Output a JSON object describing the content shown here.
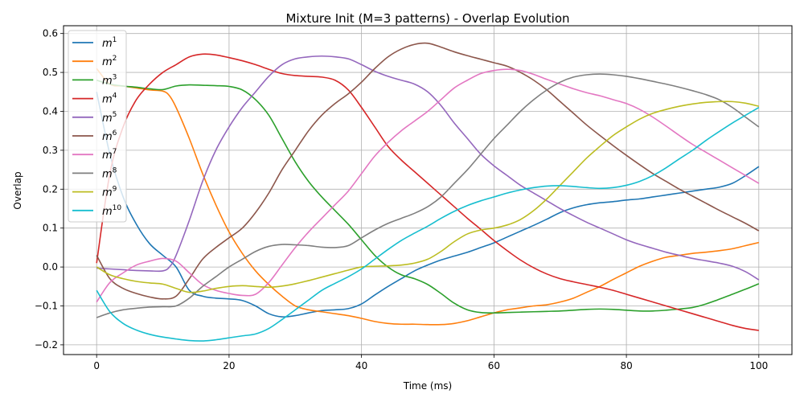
{
  "chart_data": {
    "type": "line",
    "title": "Mixture Init (M=3 patterns) - Overlap Evolution",
    "xlabel": "Time (ms)",
    "ylabel": "Overlap",
    "xlim": [
      -5,
      105
    ],
    "ylim": [
      -0.225,
      0.62
    ],
    "xticks": [
      0,
      20,
      40,
      60,
      80,
      100
    ],
    "yticks": [
      -0.2,
      -0.1,
      0.0,
      0.1,
      0.2,
      0.3,
      0.4,
      0.5,
      0.6
    ],
    "xtick_labels": [
      "0",
      "20",
      "40",
      "60",
      "80",
      "100"
    ],
    "ytick_labels": [
      "−0.2",
      "−0.1",
      "0.0",
      "0.1",
      "0.2",
      "0.3",
      "0.4",
      "0.5",
      "0.6"
    ],
    "grid": true,
    "legend_position": "upper-left",
    "series": [
      {
        "name": "m",
        "sup": "1",
        "color": "#1f77b4",
        "x": [
          0,
          2,
          4,
          6,
          8,
          10,
          12,
          14,
          16,
          18,
          20,
          22,
          24,
          26,
          28,
          30,
          32,
          34,
          36,
          38,
          40,
          42,
          44,
          46,
          48,
          50,
          52,
          54,
          56,
          58,
          60,
          62,
          64,
          66,
          68,
          70,
          72,
          74,
          76,
          78,
          80,
          82,
          84,
          86,
          88,
          90,
          92,
          94,
          96,
          98,
          100
        ],
        "y": [
          0.45,
          0.29,
          0.18,
          0.11,
          0.06,
          0.03,
          0.0,
          -0.06,
          -0.075,
          -0.08,
          -0.082,
          -0.086,
          -0.1,
          -0.12,
          -0.128,
          -0.125,
          -0.118,
          -0.112,
          -0.11,
          -0.107,
          -0.095,
          -0.072,
          -0.05,
          -0.03,
          -0.01,
          0.005,
          0.018,
          0.028,
          0.038,
          0.05,
          0.062,
          0.077,
          0.092,
          0.107,
          0.123,
          0.14,
          0.152,
          0.16,
          0.165,
          0.168,
          0.172,
          0.175,
          0.18,
          0.185,
          0.19,
          0.195,
          0.2,
          0.205,
          0.215,
          0.235,
          0.258
        ]
      },
      {
        "name": "m",
        "sup": "2",
        "color": "#ff7f0e",
        "x": [
          0,
          2,
          4,
          6,
          8,
          10,
          11,
          12,
          14,
          16,
          18,
          20,
          22,
          24,
          26,
          28,
          30,
          32,
          34,
          36,
          38,
          40,
          42,
          44,
          46,
          48,
          50,
          52,
          54,
          56,
          58,
          60,
          62,
          64,
          66,
          68,
          70,
          72,
          74,
          76,
          78,
          80,
          82,
          84,
          86,
          88,
          90,
          92,
          94,
          96,
          98,
          100
        ],
        "y": [
          0.51,
          0.47,
          0.465,
          0.46,
          0.455,
          0.452,
          0.44,
          0.41,
          0.33,
          0.24,
          0.16,
          0.09,
          0.035,
          -0.01,
          -0.045,
          -0.075,
          -0.1,
          -0.11,
          -0.115,
          -0.12,
          -0.125,
          -0.132,
          -0.14,
          -0.145,
          -0.147,
          -0.147,
          -0.148,
          -0.148,
          -0.145,
          -0.138,
          -0.128,
          -0.118,
          -0.11,
          -0.105,
          -0.1,
          -0.097,
          -0.09,
          -0.08,
          -0.065,
          -0.05,
          -0.032,
          -0.015,
          0.002,
          0.015,
          0.025,
          0.03,
          0.035,
          0.038,
          0.042,
          0.047,
          0.055,
          0.063
        ]
      },
      {
        "name": "m",
        "sup": "3",
        "color": "#2ca02c",
        "x": [
          0,
          2,
          4,
          6,
          8,
          10,
          12,
          14,
          16,
          18,
          20,
          22,
          24,
          26,
          28,
          30,
          32,
          34,
          36,
          38,
          40,
          42,
          44,
          46,
          48,
          50,
          52,
          54,
          56,
          58,
          60,
          62,
          64,
          66,
          68,
          70,
          72,
          74,
          76,
          78,
          80,
          82,
          84,
          86,
          88,
          90,
          92,
          94,
          96,
          98,
          100
        ],
        "y": [
          0.48,
          0.47,
          0.465,
          0.462,
          0.458,
          0.456,
          0.465,
          0.468,
          0.467,
          0.466,
          0.464,
          0.455,
          0.43,
          0.39,
          0.33,
          0.27,
          0.22,
          0.18,
          0.145,
          0.11,
          0.07,
          0.03,
          0.0,
          -0.02,
          -0.03,
          -0.045,
          -0.068,
          -0.093,
          -0.11,
          -0.117,
          -0.118,
          -0.117,
          -0.116,
          -0.115,
          -0.114,
          -0.113,
          -0.111,
          -0.109,
          -0.108,
          -0.109,
          -0.111,
          -0.113,
          -0.113,
          -0.111,
          -0.108,
          -0.104,
          -0.095,
          -0.083,
          -0.07,
          -0.057,
          -0.043
        ]
      },
      {
        "name": "m",
        "sup": "4",
        "color": "#d62728",
        "x": [
          0,
          2,
          4,
          6,
          8,
          10,
          12,
          14,
          16,
          18,
          20,
          22,
          24,
          26,
          28,
          30,
          32,
          34,
          36,
          38,
          40,
          42,
          44,
          46,
          48,
          50,
          52,
          54,
          56,
          58,
          60,
          62,
          64,
          66,
          68,
          70,
          72,
          74,
          76,
          78,
          80,
          82,
          84,
          86,
          88,
          90,
          92,
          94,
          96,
          98,
          100
        ],
        "y": [
          0.01,
          0.24,
          0.36,
          0.43,
          0.47,
          0.5,
          0.52,
          0.54,
          0.547,
          0.545,
          0.538,
          0.53,
          0.52,
          0.508,
          0.497,
          0.492,
          0.49,
          0.488,
          0.48,
          0.455,
          0.41,
          0.36,
          0.31,
          0.275,
          0.245,
          0.215,
          0.185,
          0.155,
          0.125,
          0.097,
          0.068,
          0.042,
          0.018,
          -0.002,
          -0.018,
          -0.03,
          -0.038,
          -0.045,
          -0.052,
          -0.06,
          -0.07,
          -0.08,
          -0.09,
          -0.1,
          -0.11,
          -0.12,
          -0.13,
          -0.14,
          -0.15,
          -0.158,
          -0.163
        ]
      },
      {
        "name": "m",
        "sup": "5",
        "color": "#9467bd",
        "x": [
          0,
          2,
          4,
          6,
          8,
          10,
          11,
          12,
          14,
          16,
          18,
          20,
          22,
          24,
          26,
          28,
          30,
          32,
          34,
          36,
          38,
          40,
          42,
          44,
          46,
          48,
          50,
          52,
          54,
          56,
          58,
          60,
          62,
          64,
          66,
          68,
          70,
          72,
          74,
          76,
          78,
          80,
          82,
          84,
          86,
          88,
          90,
          92,
          94,
          96,
          98,
          100
        ],
        "y": [
          -0.003,
          -0.005,
          -0.007,
          -0.009,
          -0.01,
          -0.01,
          0.0,
          0.03,
          0.12,
          0.22,
          0.3,
          0.36,
          0.41,
          0.45,
          0.49,
          0.52,
          0.535,
          0.54,
          0.542,
          0.54,
          0.535,
          0.52,
          0.503,
          0.49,
          0.48,
          0.47,
          0.45,
          0.415,
          0.37,
          0.33,
          0.29,
          0.26,
          0.235,
          0.21,
          0.19,
          0.17,
          0.15,
          0.132,
          0.115,
          0.1,
          0.085,
          0.07,
          0.058,
          0.048,
          0.038,
          0.03,
          0.022,
          0.016,
          0.01,
          0.002,
          -0.012,
          -0.033
        ]
      },
      {
        "name": "m",
        "sup": "6",
        "color": "#8c564b",
        "x": [
          0,
          2,
          4,
          6,
          8,
          10,
          12,
          14,
          16,
          18,
          20,
          22,
          24,
          26,
          28,
          30,
          32,
          34,
          36,
          38,
          40,
          42,
          44,
          46,
          48,
          50,
          52,
          54,
          56,
          58,
          60,
          62,
          64,
          66,
          68,
          70,
          72,
          74,
          76,
          78,
          80,
          82,
          84,
          86,
          88,
          90,
          92,
          94,
          96,
          98,
          100
        ],
        "y": [
          0.03,
          -0.03,
          -0.055,
          -0.068,
          -0.077,
          -0.082,
          -0.075,
          -0.03,
          0.02,
          0.05,
          0.075,
          0.1,
          0.14,
          0.19,
          0.25,
          0.3,
          0.35,
          0.39,
          0.42,
          0.445,
          0.475,
          0.51,
          0.54,
          0.56,
          0.572,
          0.575,
          0.565,
          0.553,
          0.543,
          0.534,
          0.525,
          0.516,
          0.5,
          0.48,
          0.455,
          0.425,
          0.395,
          0.365,
          0.338,
          0.312,
          0.287,
          0.263,
          0.24,
          0.22,
          0.2,
          0.182,
          0.164,
          0.146,
          0.129,
          0.112,
          0.093
        ]
      },
      {
        "name": "m",
        "sup": "7",
        "color": "#e377c2",
        "x": [
          0,
          2,
          4,
          6,
          8,
          10,
          12,
          14,
          16,
          18,
          20,
          22,
          24,
          26,
          28,
          30,
          32,
          34,
          36,
          38,
          40,
          42,
          44,
          46,
          48,
          50,
          52,
          54,
          56,
          58,
          60,
          62,
          64,
          66,
          68,
          70,
          72,
          74,
          76,
          78,
          80,
          82,
          84,
          86,
          88,
          90,
          92,
          94,
          96,
          98,
          100
        ],
        "y": [
          -0.09,
          -0.04,
          -0.015,
          0.005,
          0.015,
          0.022,
          0.015,
          -0.015,
          -0.045,
          -0.06,
          -0.068,
          -0.073,
          -0.07,
          -0.04,
          0.005,
          0.05,
          0.09,
          0.125,
          0.16,
          0.195,
          0.24,
          0.285,
          0.32,
          0.35,
          0.375,
          0.4,
          0.43,
          0.46,
          0.48,
          0.497,
          0.505,
          0.508,
          0.505,
          0.495,
          0.482,
          0.47,
          0.458,
          0.448,
          0.44,
          0.43,
          0.42,
          0.405,
          0.385,
          0.362,
          0.338,
          0.315,
          0.295,
          0.275,
          0.255,
          0.235,
          0.215
        ]
      },
      {
        "name": "m",
        "sup": "8",
        "color": "#7f7f7f",
        "x": [
          0,
          2,
          4,
          6,
          8,
          10,
          12,
          14,
          16,
          18,
          20,
          22,
          24,
          26,
          28,
          30,
          32,
          34,
          36,
          38,
          40,
          42,
          44,
          46,
          48,
          50,
          52,
          54,
          56,
          58,
          60,
          62,
          64,
          66,
          68,
          70,
          72,
          74,
          76,
          78,
          80,
          82,
          84,
          86,
          88,
          90,
          92,
          94,
          96,
          98,
          100
        ],
        "y": [
          -0.13,
          -0.118,
          -0.11,
          -0.106,
          -0.103,
          -0.102,
          -0.1,
          -0.08,
          -0.05,
          -0.025,
          0.0,
          0.02,
          0.04,
          0.053,
          0.058,
          0.057,
          0.055,
          0.051,
          0.05,
          0.055,
          0.075,
          0.095,
          0.112,
          0.125,
          0.138,
          0.155,
          0.18,
          0.215,
          0.25,
          0.29,
          0.33,
          0.365,
          0.4,
          0.43,
          0.455,
          0.475,
          0.488,
          0.494,
          0.496,
          0.494,
          0.49,
          0.484,
          0.477,
          0.47,
          0.462,
          0.453,
          0.443,
          0.43,
          0.41,
          0.385,
          0.36
        ]
      },
      {
        "name": "m",
        "sup": "9",
        "color": "#bcbd22",
        "x": [
          0,
          2,
          4,
          6,
          8,
          10,
          12,
          14,
          16,
          18,
          20,
          22,
          24,
          26,
          28,
          30,
          32,
          34,
          36,
          38,
          40,
          42,
          44,
          46,
          48,
          50,
          52,
          54,
          56,
          58,
          60,
          62,
          64,
          66,
          68,
          70,
          72,
          74,
          76,
          78,
          80,
          82,
          84,
          86,
          88,
          90,
          92,
          94,
          96,
          98,
          100
        ],
        "y": [
          0.0,
          -0.02,
          -0.03,
          -0.037,
          -0.041,
          -0.044,
          -0.055,
          -0.065,
          -0.062,
          -0.055,
          -0.05,
          -0.048,
          -0.05,
          -0.052,
          -0.049,
          -0.043,
          -0.035,
          -0.026,
          -0.017,
          -0.008,
          0.0,
          0.002,
          0.003,
          0.005,
          0.01,
          0.02,
          0.04,
          0.065,
          0.085,
          0.095,
          0.1,
          0.108,
          0.122,
          0.145,
          0.175,
          0.21,
          0.245,
          0.28,
          0.31,
          0.338,
          0.36,
          0.38,
          0.395,
          0.405,
          0.413,
          0.419,
          0.423,
          0.425,
          0.425,
          0.421,
          0.413
        ]
      },
      {
        "name": "m",
        "sup": "10",
        "color": "#17becf",
        "x": [
          0,
          2,
          4,
          6,
          8,
          10,
          12,
          14,
          16,
          18,
          20,
          22,
          24,
          26,
          28,
          30,
          32,
          34,
          36,
          38,
          40,
          42,
          44,
          46,
          48,
          50,
          52,
          54,
          56,
          58,
          60,
          62,
          64,
          66,
          68,
          70,
          72,
          74,
          76,
          78,
          80,
          82,
          84,
          86,
          88,
          90,
          92,
          94,
          96,
          98,
          100
        ],
        "y": [
          -0.06,
          -0.115,
          -0.145,
          -0.162,
          -0.173,
          -0.18,
          -0.185,
          -0.189,
          -0.19,
          -0.187,
          -0.182,
          -0.177,
          -0.172,
          -0.158,
          -0.135,
          -0.11,
          -0.085,
          -0.06,
          -0.042,
          -0.025,
          -0.005,
          0.02,
          0.045,
          0.068,
          0.087,
          0.105,
          0.125,
          0.143,
          0.158,
          0.17,
          0.18,
          0.19,
          0.198,
          0.204,
          0.208,
          0.209,
          0.207,
          0.204,
          0.202,
          0.204,
          0.21,
          0.22,
          0.235,
          0.255,
          0.278,
          0.3,
          0.325,
          0.348,
          0.37,
          0.39,
          0.41
        ]
      }
    ]
  }
}
